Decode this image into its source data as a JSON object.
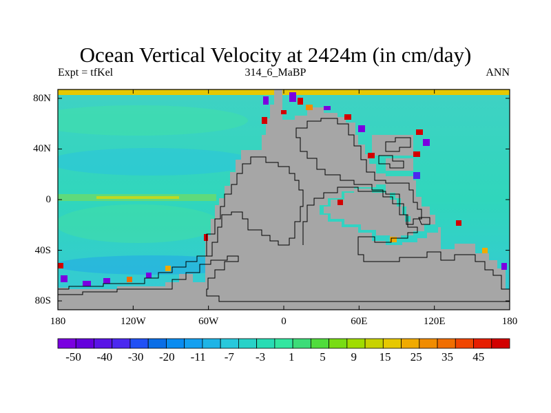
{
  "header": {
    "title": "Ocean Vertical Velocity at 2424m (in cm/day)",
    "left_text": "Expt = tfKel",
    "center_text": "314_6_MaBP",
    "right_text": "ANN"
  },
  "map": {
    "land_color": "#a6a6a6",
    "lat_ticks": [
      {
        "value": 80,
        "label": "80N"
      },
      {
        "value": 40,
        "label": "40N"
      },
      {
        "value": 0,
        "label": "0"
      },
      {
        "value": -40,
        "label": "40S"
      },
      {
        "value": -80,
        "label": "80S"
      }
    ],
    "lon_ticks": [
      {
        "value": -180,
        "label": "180"
      },
      {
        "value": -120,
        "label": "120W"
      },
      {
        "value": -60,
        "label": "60W"
      },
      {
        "value": 0,
        "label": "0"
      },
      {
        "value": 60,
        "label": "60E"
      },
      {
        "value": 120,
        "label": "120E"
      },
      {
        "value": 180,
        "label": "180"
      }
    ]
  },
  "colorbar": {
    "colors": [
      "#7a00e0",
      "#6400dc",
      "#5a14e6",
      "#4b28f0",
      "#2050f5",
      "#0a6ee6",
      "#0a8cf0",
      "#14a0f0",
      "#1eb4e6",
      "#28c8dc",
      "#28d2c8",
      "#28dcb4",
      "#32e6a0",
      "#3cdc78",
      "#50dc3c",
      "#78dc14",
      "#a0dc00",
      "#c8d200",
      "#e6c800",
      "#f0aa00",
      "#f08c00",
      "#f06e00",
      "#f04600",
      "#e61e00",
      "#d20000"
    ],
    "labels": [
      {
        "index": 1,
        "text": "-50"
      },
      {
        "index": 3,
        "text": "-40"
      },
      {
        "index": 5,
        "text": "-30"
      },
      {
        "index": 7,
        "text": "-20"
      },
      {
        "index": 9,
        "text": "-11"
      },
      {
        "index": 11,
        "text": "-7"
      },
      {
        "index": 13,
        "text": "-3"
      },
      {
        "index": 15,
        "text": "1"
      },
      {
        "index": 17,
        "text": "5"
      },
      {
        "index": 19,
        "text": "9"
      },
      {
        "index": 21,
        "text": "15"
      },
      {
        "index": 23,
        "text": "25"
      },
      {
        "index": 25,
        "text": "35"
      },
      {
        "index": 27,
        "text": "45"
      }
    ]
  }
}
